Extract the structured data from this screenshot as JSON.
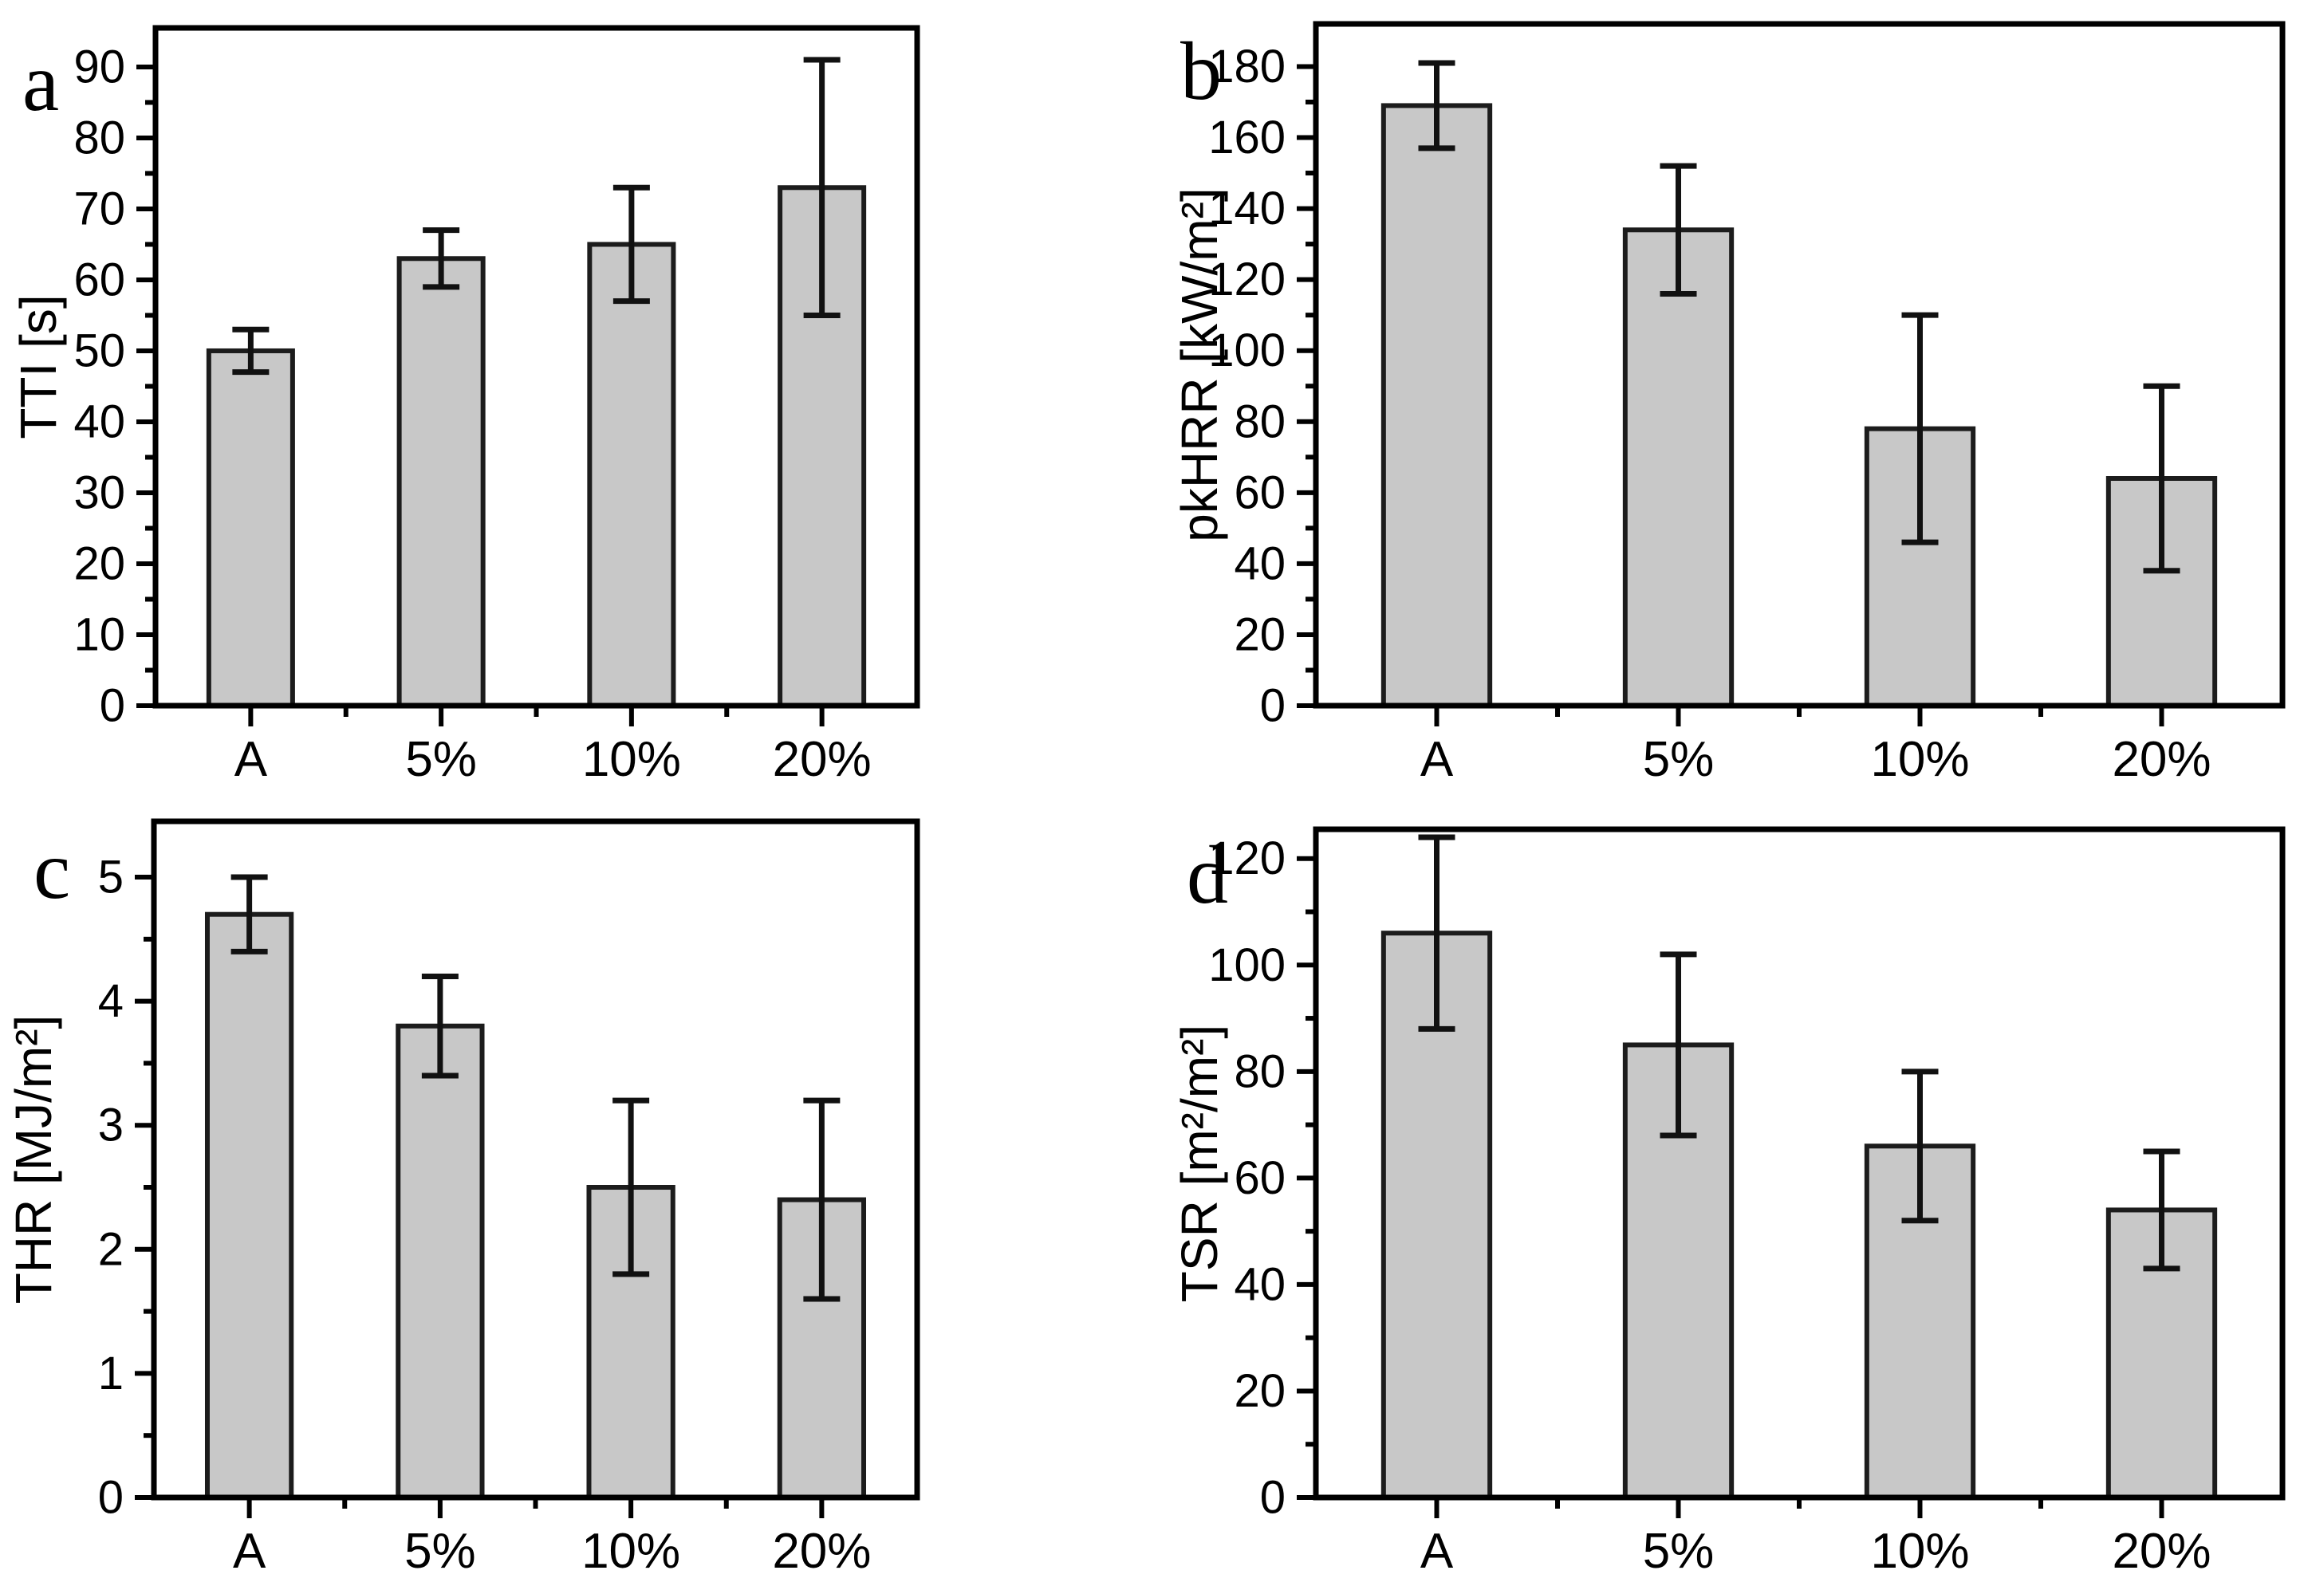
{
  "figure": {
    "background": "#ffffff",
    "bar_fill": "#c8c8c8",
    "bar_stroke": "#1c1c1c",
    "axis_color": "#000000",
    "error_bar_color": "#111111",
    "panel_letters": [
      "a",
      "b",
      "c",
      "d"
    ]
  },
  "chart_data": [
    {
      "type": "bar",
      "panel_label": "a",
      "categories": [
        "A",
        "5%",
        "10%",
        "20%"
      ],
      "values": [
        50,
        63,
        65,
        73
      ],
      "error_low": [
        3,
        4,
        8,
        18
      ],
      "error_high": [
        3,
        4,
        8,
        18
      ],
      "title": "",
      "xlabel": "",
      "ylabel": "TTI [s]",
      "ylim": [
        0,
        95.5
      ],
      "ytick_step": 10,
      "yminor_step": 5,
      "ytick_labels": [
        "0",
        "10",
        "20",
        "30",
        "40",
        "50",
        "60",
        "70",
        "80",
        "90"
      ],
      "grid": false,
      "legend_position": "none"
    },
    {
      "type": "bar",
      "panel_label": "b",
      "categories": [
        "A",
        "5%",
        "10%",
        "20%"
      ],
      "values": [
        169,
        134,
        78,
        64
      ],
      "error_low": [
        12,
        18,
        32,
        26
      ],
      "error_high": [
        12,
        18,
        32,
        26
      ],
      "title": "",
      "xlabel": "",
      "ylabel": "pkHRR [kW/m²]",
      "ylim": [
        0,
        192
      ],
      "ytick_step": 20,
      "yminor_step": 10,
      "ytick_labels": [
        "0",
        "20",
        "40",
        "60",
        "80",
        "100",
        "120",
        "140",
        "160",
        "180"
      ],
      "grid": false,
      "legend_position": "none"
    },
    {
      "type": "bar",
      "panel_label": "c",
      "categories": [
        "A",
        "5%",
        "10%",
        "20%"
      ],
      "values": [
        4.7,
        3.8,
        2.5,
        2.4
      ],
      "error_low": [
        0.3,
        0.4,
        0.7,
        0.8
      ],
      "error_high": [
        0.3,
        0.4,
        0.7,
        0.8
      ],
      "title": "",
      "xlabel": "",
      "ylabel": "THR [MJ/m²]",
      "ylim": [
        0,
        5.45
      ],
      "ytick_step": 1,
      "yminor_step": 0.5,
      "ytick_labels": [
        "0",
        "1",
        "2",
        "3",
        "4",
        "5"
      ],
      "grid": false,
      "legend_position": "none"
    },
    {
      "type": "bar",
      "panel_label": "d",
      "categories": [
        "A",
        "5%",
        "10%",
        "20%"
      ],
      "values": [
        106,
        85,
        66,
        54
      ],
      "error_low": [
        18,
        17,
        14,
        11
      ],
      "error_high": [
        18,
        17,
        14,
        11
      ],
      "title": "",
      "xlabel": "",
      "ylabel": "TSR [m²/m²]",
      "ylim": [
        0,
        125.5
      ],
      "ytick_step": 20,
      "yminor_step": 10,
      "ytick_labels": [
        "0",
        "20",
        "40",
        "60",
        "80",
        "100",
        "120"
      ],
      "grid": false,
      "legend_position": "none"
    }
  ]
}
